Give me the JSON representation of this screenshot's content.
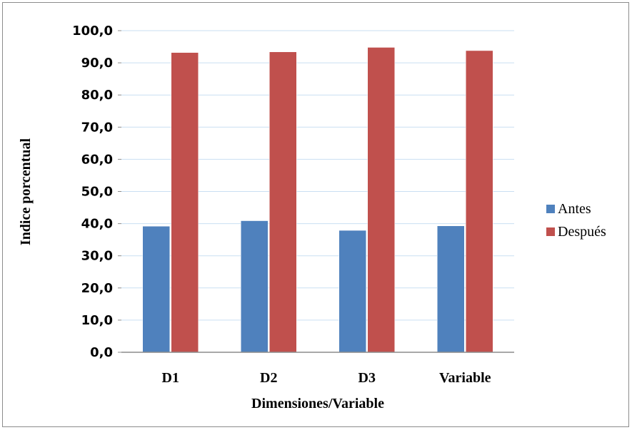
{
  "chart_data": {
    "type": "bar",
    "xlabel": "Dimensiones/Variable",
    "ylabel": "Indice porcentual",
    "categories": [
      "D1",
      "D2",
      "D3",
      "Variable"
    ],
    "ylim": [
      0,
      100
    ],
    "ytick_labels": [
      "0,0",
      "10,0",
      "20,0",
      "30,0",
      "40,0",
      "50,0",
      "60,0",
      "70,0",
      "80,0",
      "90,0",
      "100,0"
    ],
    "grid": true,
    "legend_position": "right",
    "series": [
      {
        "name": "Antes",
        "color": "#4f81bd",
        "values": [
          39.2,
          40.9,
          37.9,
          39.3
        ]
      },
      {
        "name": "Después",
        "color": "#c0504d",
        "values": [
          93.2,
          93.4,
          94.8,
          93.8
        ]
      }
    ]
  }
}
